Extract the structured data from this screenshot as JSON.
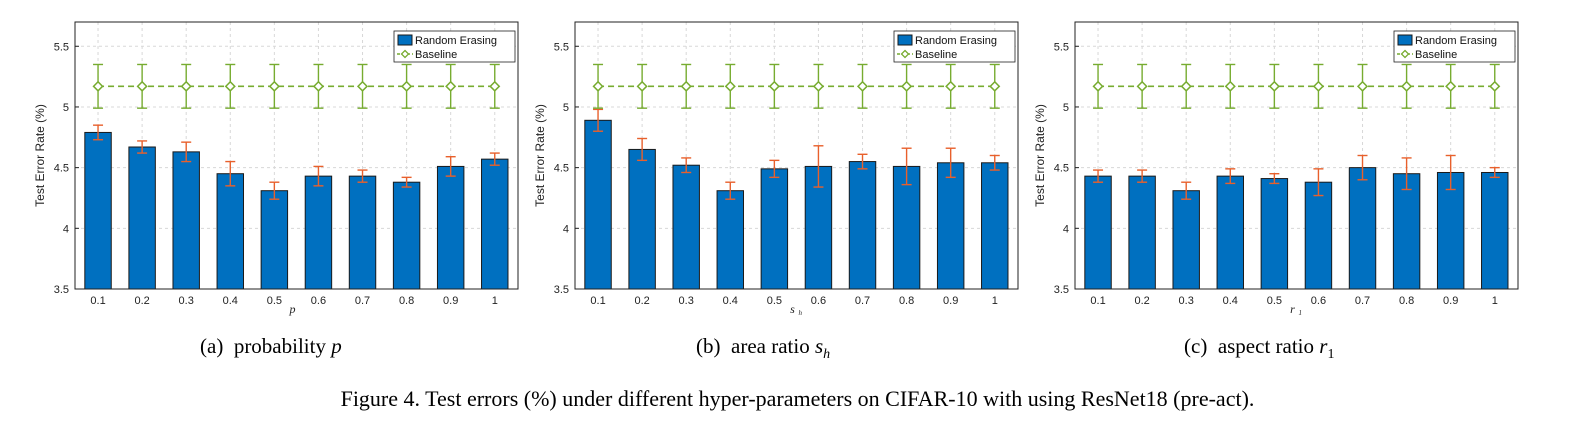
{
  "caption": "Figure 4. Test errors (%) under different hyper-parameters on CIFAR-10 with using ResNet18 (pre-act).",
  "colors": {
    "bar": "#0070c0",
    "error_bar": "#e8602c",
    "baseline": "#77ac30",
    "grid": "#d8d8d8"
  },
  "chart_data": [
    {
      "type": "bar",
      "subcaption": {
        "label": "(a)",
        "text": "probability",
        "symbol": "p",
        "subscript": ""
      },
      "xlabel": "p",
      "ylabel": "Test Error Rate (%)",
      "ylim": [
        3.5,
        5.7
      ],
      "yticks": [
        "3.5",
        "4",
        "4.5",
        "5",
        "5.5"
      ],
      "categories": [
        "0.1",
        "0.2",
        "0.3",
        "0.4",
        "0.5",
        "0.6",
        "0.7",
        "0.8",
        "0.9",
        "1"
      ],
      "grid": true,
      "legend_position": "top-right",
      "series": [
        {
          "name": "Random Erasing",
          "kind": "bar",
          "values": [
            4.79,
            4.67,
            4.63,
            4.45,
            4.31,
            4.43,
            4.43,
            4.38,
            4.51,
            4.57
          ],
          "errors": [
            0.06,
            0.05,
            0.08,
            0.1,
            0.07,
            0.08,
            0.05,
            0.04,
            0.08,
            0.05
          ]
        },
        {
          "name": "Baseline",
          "kind": "line",
          "values": [
            5.17,
            5.17,
            5.17,
            5.17,
            5.17,
            5.17,
            5.17,
            5.17,
            5.17,
            5.17
          ],
          "errors": [
            0.18,
            0.18,
            0.18,
            0.18,
            0.18,
            0.18,
            0.18,
            0.18,
            0.18,
            0.18
          ]
        }
      ]
    },
    {
      "type": "bar",
      "subcaption": {
        "label": "(b)",
        "text": "area ratio",
        "symbol": "s",
        "subscript": "h"
      },
      "xlabel": "s",
      "xlabel_sub": "h",
      "ylabel": "Test Error Rate (%)",
      "ylim": [
        3.5,
        5.7
      ],
      "yticks": [
        "3.5",
        "4",
        "4.5",
        "5",
        "5.5"
      ],
      "categories": [
        "0.1",
        "0.2",
        "0.3",
        "0.4",
        "0.5",
        "0.6",
        "0.7",
        "0.8",
        "0.9",
        "1"
      ],
      "grid": true,
      "legend_position": "top-right",
      "series": [
        {
          "name": "Random Erasing",
          "kind": "bar",
          "values": [
            4.89,
            4.65,
            4.52,
            4.31,
            4.49,
            4.51,
            4.55,
            4.51,
            4.54,
            4.54
          ],
          "errors": [
            0.09,
            0.09,
            0.06,
            0.07,
            0.07,
            0.17,
            0.06,
            0.15,
            0.12,
            0.06
          ]
        },
        {
          "name": "Baseline",
          "kind": "line",
          "values": [
            5.17,
            5.17,
            5.17,
            5.17,
            5.17,
            5.17,
            5.17,
            5.17,
            5.17,
            5.17
          ],
          "errors": [
            0.18,
            0.18,
            0.18,
            0.18,
            0.18,
            0.18,
            0.18,
            0.18,
            0.18,
            0.18
          ]
        }
      ]
    },
    {
      "type": "bar",
      "subcaption": {
        "label": "(c)",
        "text": "aspect ratio",
        "symbol": "r",
        "subscript": "1"
      },
      "xlabel": "r",
      "xlabel_sub": "1",
      "ylabel": "Test Error Rate (%)",
      "ylim": [
        3.5,
        5.7
      ],
      "yticks": [
        "3.5",
        "4",
        "4.5",
        "5",
        "5.5"
      ],
      "categories": [
        "0.1",
        "0.2",
        "0.3",
        "0.4",
        "0.5",
        "0.6",
        "0.7",
        "0.8",
        "0.9",
        "1"
      ],
      "grid": true,
      "legend_position": "top-right",
      "series": [
        {
          "name": "Random Erasing",
          "kind": "bar",
          "values": [
            4.43,
            4.43,
            4.31,
            4.43,
            4.41,
            4.38,
            4.5,
            4.45,
            4.46,
            4.46
          ],
          "errors": [
            0.05,
            0.05,
            0.07,
            0.06,
            0.04,
            0.11,
            0.1,
            0.13,
            0.14,
            0.04
          ]
        },
        {
          "name": "Baseline",
          "kind": "line",
          "values": [
            5.17,
            5.17,
            5.17,
            5.17,
            5.17,
            5.17,
            5.17,
            5.17,
            5.17,
            5.17
          ],
          "errors": [
            0.18,
            0.18,
            0.18,
            0.18,
            0.18,
            0.18,
            0.18,
            0.18,
            0.18,
            0.18
          ]
        }
      ]
    }
  ]
}
